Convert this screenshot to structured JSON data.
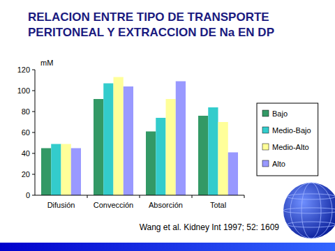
{
  "chart_data": {
    "type": "bar",
    "title": "RELACION ENTRE TIPO DE TRANSPORTE PERITONEAL Y EXTRACCION DE Na EN DP",
    "y_label": "mM",
    "annotation": "Wang et al. Kidney Int 1997; 52: 1609",
    "categories": [
      "Difusión",
      "Convección",
      "Absorción",
      "Total"
    ],
    "series": [
      {
        "name": "Bajo",
        "color": "#339966",
        "values": [
          45,
          92,
          61,
          76
        ]
      },
      {
        "name": "Medio-Bajo",
        "color": "#33cccc",
        "values": [
          49,
          107,
          74,
          84
        ]
      },
      {
        "name": "Medio-Alto",
        "color": "#ffff99",
        "values": [
          49,
          113,
          92,
          70
        ]
      },
      {
        "name": "Alto",
        "color": "#9999ff",
        "values": [
          45,
          104,
          109,
          41
        ]
      }
    ],
    "ylim": [
      0,
      120
    ],
    "yticks": [
      0,
      20,
      40,
      60,
      80,
      100,
      120
    ],
    "grid": false,
    "legend": "right"
  }
}
